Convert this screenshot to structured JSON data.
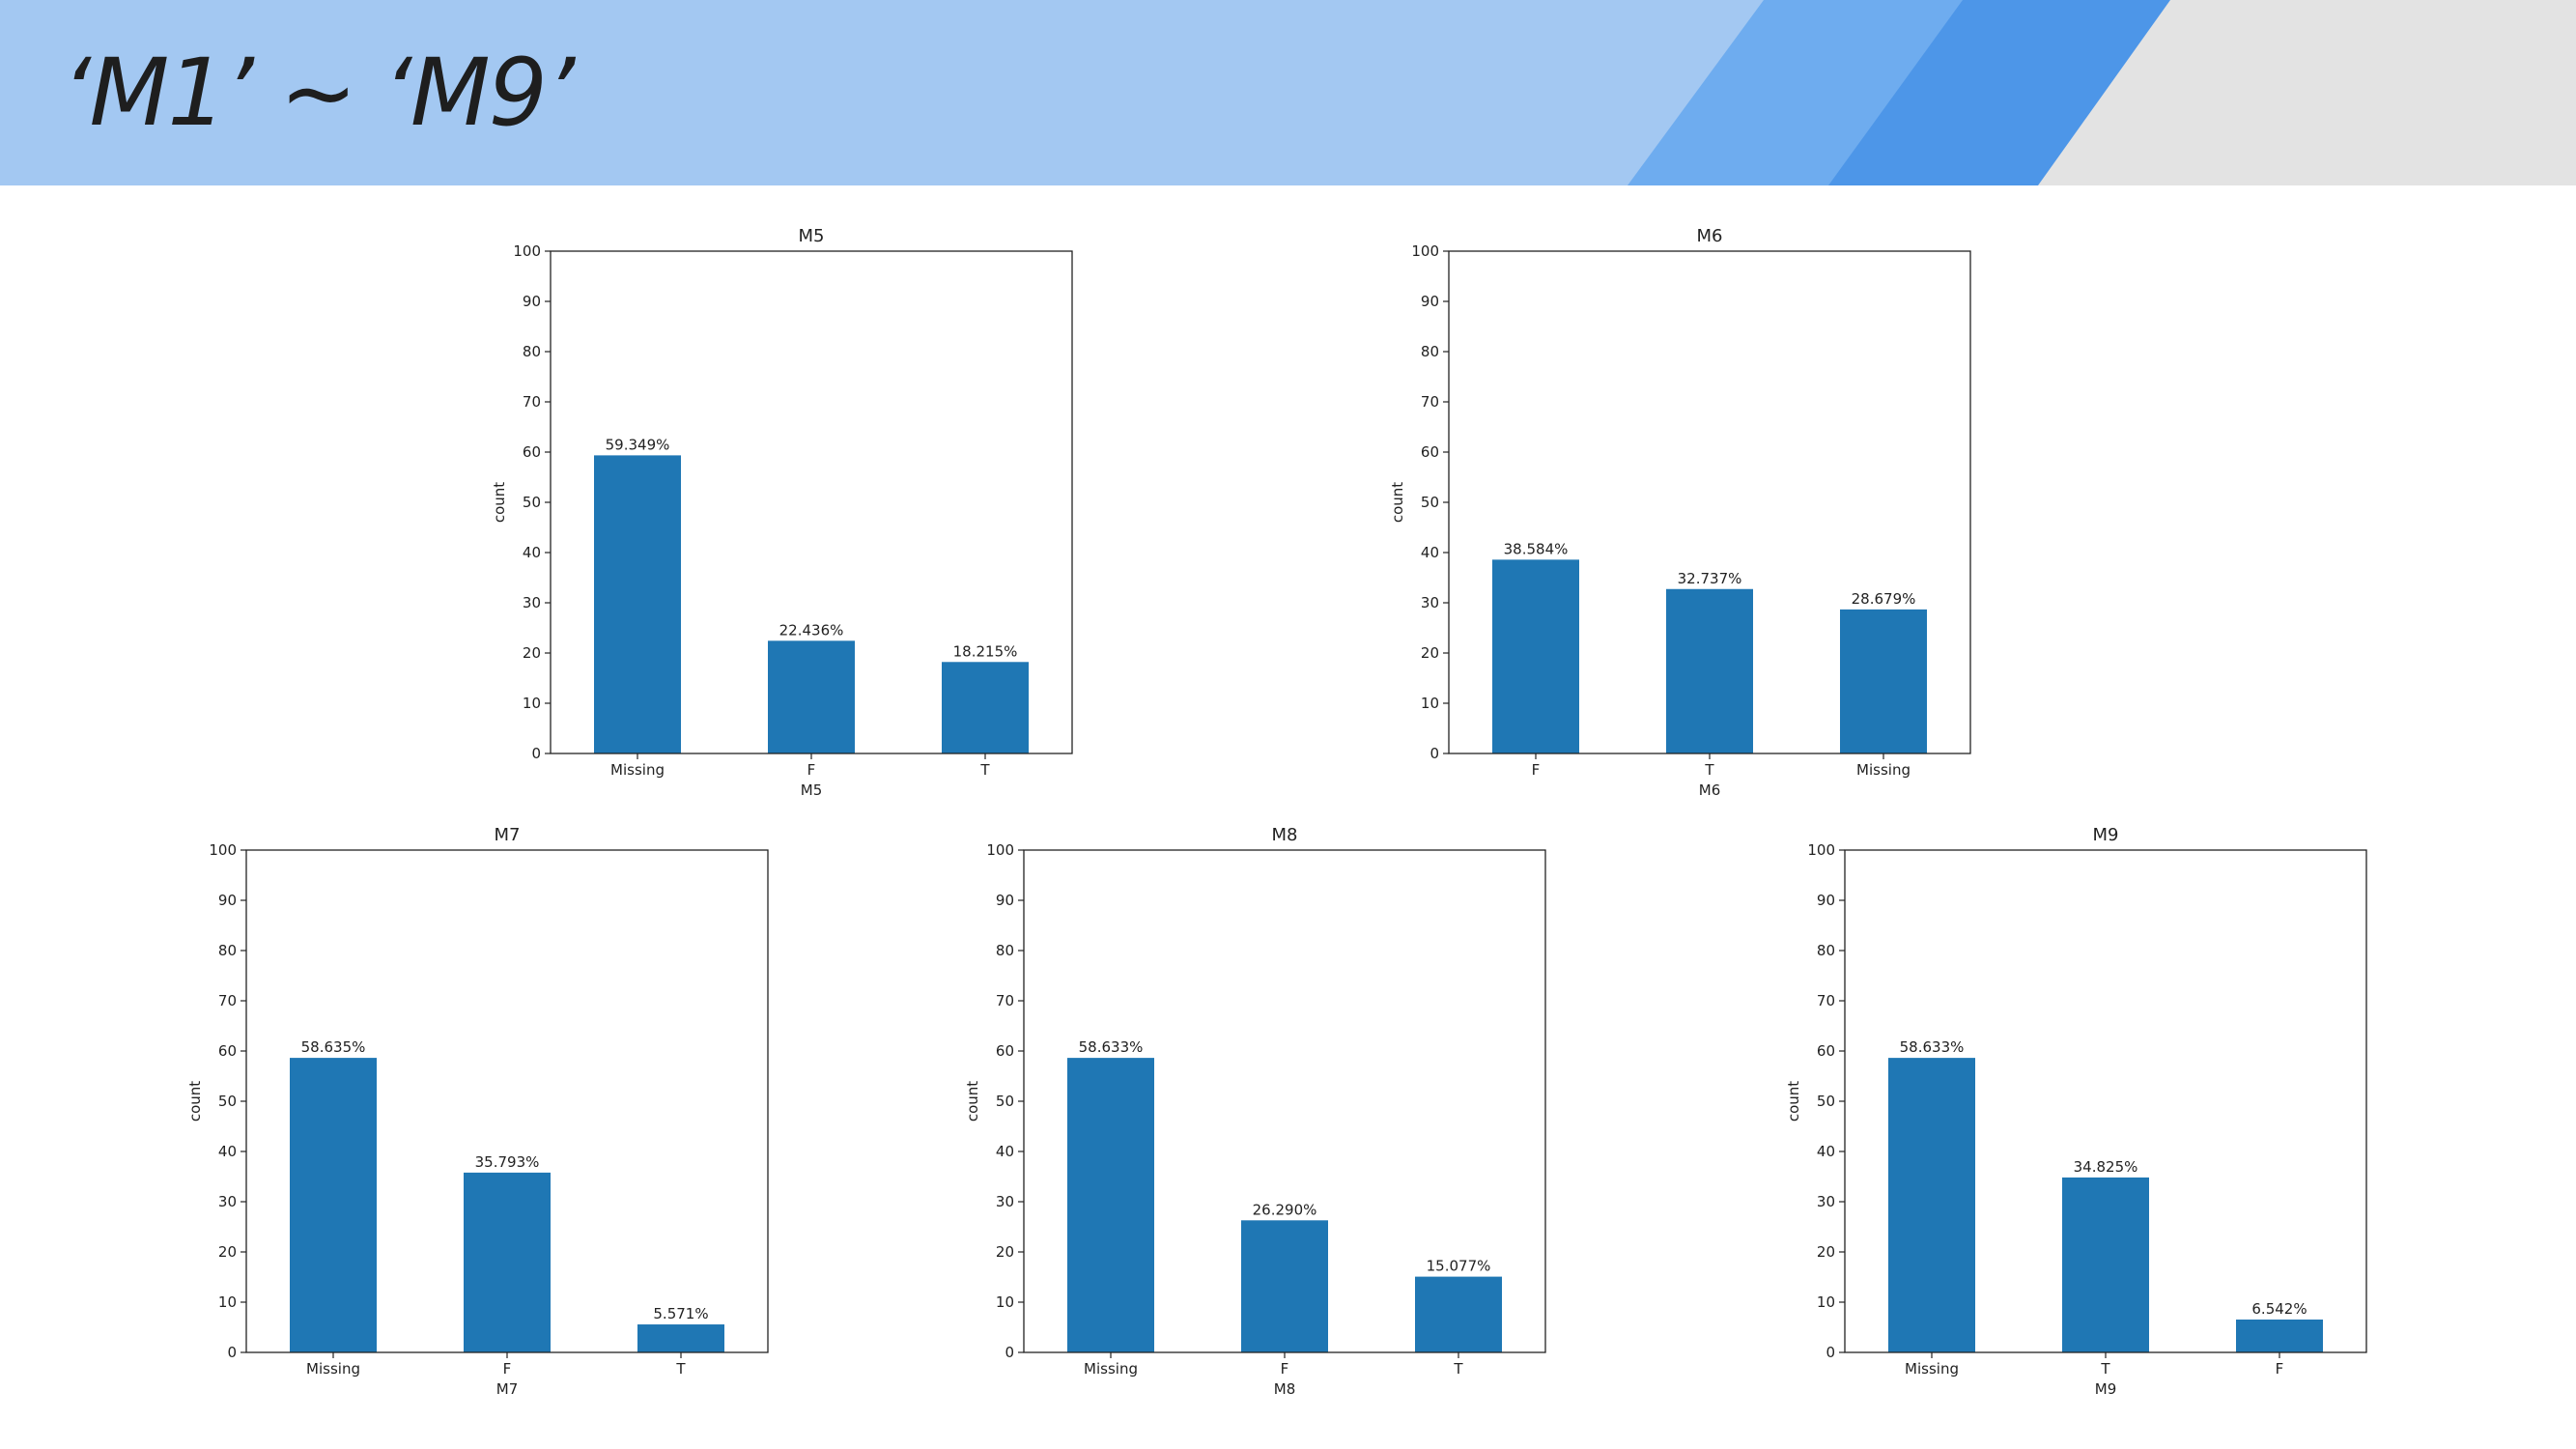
{
  "slide": {
    "title": "‘M1’ ~ ‘M9’",
    "colors": {
      "header": "#a3c8f2",
      "stripe_mid": "#6eacef",
      "stripe_dark": "#4d96e8",
      "corner": "#e3e3e3",
      "bar": "#1f77b4"
    }
  },
  "chart_data": [
    {
      "type": "bar",
      "title": "M5",
      "xlabel": "M5",
      "ylabel": "count",
      "categories": [
        "Missing",
        "F",
        "T"
      ],
      "values": [
        59.349,
        22.436,
        18.215
      ],
      "labels": [
        "59.349%",
        "22.436%",
        "18.215%"
      ],
      "ylim": [
        0,
        100
      ],
      "yticks": [
        "0",
        "10",
        "20",
        "30",
        "40",
        "50",
        "60",
        "70",
        "80",
        "90",
        "100"
      ],
      "grid": false
    },
    {
      "type": "bar",
      "title": "M6",
      "xlabel": "M6",
      "ylabel": "count",
      "categories": [
        "F",
        "T",
        "Missing"
      ],
      "values": [
        38.584,
        32.737,
        28.679
      ],
      "labels": [
        "38.584%",
        "32.737%",
        "28.679%"
      ],
      "ylim": [
        0,
        100
      ],
      "yticks": [
        "0",
        "10",
        "20",
        "30",
        "40",
        "50",
        "60",
        "70",
        "80",
        "90",
        "100"
      ],
      "grid": false
    },
    {
      "type": "bar",
      "title": "M7",
      "xlabel": "M7",
      "ylabel": "count",
      "categories": [
        "Missing",
        "F",
        "T"
      ],
      "values": [
        58.635,
        35.793,
        5.571
      ],
      "labels": [
        "58.635%",
        "35.793%",
        "5.571%"
      ],
      "ylim": [
        0,
        100
      ],
      "yticks": [
        "0",
        "10",
        "20",
        "30",
        "40",
        "50",
        "60",
        "70",
        "80",
        "90",
        "100"
      ],
      "grid": false
    },
    {
      "type": "bar",
      "title": "M8",
      "xlabel": "M8",
      "ylabel": "count",
      "categories": [
        "Missing",
        "F",
        "T"
      ],
      "values": [
        58.633,
        26.29,
        15.077
      ],
      "labels": [
        "58.633%",
        "26.290%",
        "15.077%"
      ],
      "ylim": [
        0,
        100
      ],
      "yticks": [
        "0",
        "10",
        "20",
        "30",
        "40",
        "50",
        "60",
        "70",
        "80",
        "90",
        "100"
      ],
      "grid": false
    },
    {
      "type": "bar",
      "title": "M9",
      "xlabel": "M9",
      "ylabel": "count",
      "categories": [
        "Missing",
        "T",
        "F"
      ],
      "values": [
        58.633,
        34.825,
        6.542
      ],
      "labels": [
        "58.633%",
        "34.825%",
        "6.542%"
      ],
      "ylim": [
        0,
        100
      ],
      "yticks": [
        "0",
        "10",
        "20",
        "30",
        "40",
        "50",
        "60",
        "70",
        "80",
        "90",
        "100"
      ],
      "grid": false
    }
  ]
}
